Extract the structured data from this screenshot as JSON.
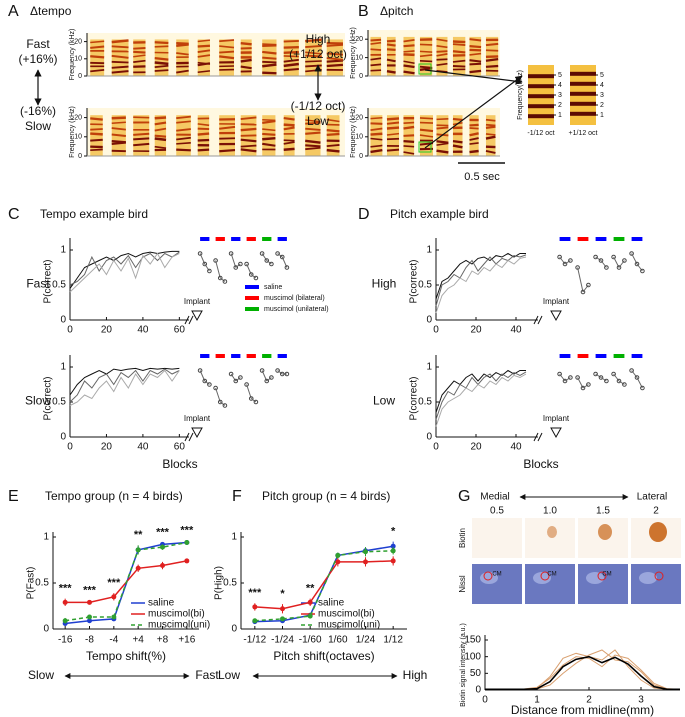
{
  "panels": [
    {
      "label": "A",
      "title": "Δtempo"
    },
    {
      "label": "B",
      "title": "Δpitch"
    },
    {
      "label": "C",
      "title": "Tempo example bird"
    },
    {
      "label": "D",
      "title": "Pitch example bird"
    },
    {
      "label": "E",
      "title": "Tempo group (n = 4 birds)"
    },
    {
      "label": "F",
      "title": "Pitch group (n = 4 birds)"
    },
    {
      "label": "G"
    }
  ],
  "spectrograms": [
    {
      "top": [
        "Fast",
        "(+16%)"
      ],
      "bottom": [
        "(-16%)",
        "Slow"
      ],
      "ylabel": "Frequency (kHz)",
      "ylim": [
        0,
        25
      ],
      "yticks": [
        0,
        10,
        20
      ]
    },
    {
      "top": [
        "High",
        "(+1/12 oct)"
      ],
      "bottom": [
        "(-1/12 oct)",
        "Low"
      ],
      "ylabel": "Frequency (kHz)",
      "ylim": [
        0,
        25
      ],
      "yticks": [
        0,
        10,
        20
      ],
      "inset": {
        "ylabel": "Frequency(kHz)",
        "ylim": [
          0,
          6
        ],
        "yticks": [
          1,
          2,
          3,
          4,
          5
        ],
        "labels": [
          "-1/12 oct",
          "+1/12 oct"
        ]
      },
      "scale_bar": "0.5 sec"
    }
  ],
  "histology": {
    "medial": "Medial",
    "lateral": "Lateral",
    "positions": [
      "0.5",
      "1.0",
      "1.5",
      "2"
    ],
    "rows": [
      "Biotin",
      "Nissl"
    ],
    "region": "CM"
  },
  "chart_data": [
    {
      "type": "line",
      "row_label": "Fast",
      "ylabel": "P(correct)",
      "ylim": [
        0,
        1.1
      ],
      "yticks": [
        0,
        0.5,
        1
      ],
      "xlim": [
        0,
        62
      ],
      "xticks": [
        0,
        20,
        40,
        60
      ],
      "implant": "Implant",
      "x": [
        0,
        4,
        8,
        12,
        16,
        20,
        24,
        28,
        32,
        36,
        40,
        44,
        48,
        52,
        56,
        60
      ],
      "series": [
        {
          "color": "#111111",
          "values": [
            0.45,
            0.6,
            0.75,
            0.8,
            0.85,
            0.9,
            0.85,
            0.92,
            0.95,
            0.9,
            0.95,
            0.97,
            0.95,
            0.97,
            0.98,
            0.98
          ]
        },
        {
          "color": "#666666",
          "values": [
            0.5,
            0.55,
            0.65,
            0.9,
            0.7,
            0.85,
            0.9,
            0.8,
            0.92,
            0.75,
            0.9,
            0.95,
            0.85,
            0.95,
            0.9,
            0.97
          ]
        },
        {
          "color": "#aaaaaa",
          "values": [
            0.4,
            0.5,
            0.6,
            0.7,
            0.8,
            0.65,
            0.85,
            0.7,
            0.88,
            0.6,
            0.92,
            0.8,
            0.95,
            0.75,
            0.9,
            0.95
          ]
        }
      ],
      "post": [
        {
          "color": "#0000ff",
          "values": [
            0.95,
            0.8,
            0.7
          ]
        },
        {
          "color": "#ff0000",
          "values": [
            0.85,
            0.6,
            0.55
          ]
        },
        {
          "color": "#0000ff",
          "values": [
            0.95,
            0.75,
            0.8
          ]
        },
        {
          "color": "#ff0000",
          "values": [
            0.8,
            0.65,
            0.6
          ]
        },
        {
          "color": "#00b000",
          "values": [
            0.95,
            0.85,
            0.8
          ]
        },
        {
          "color": "#0000ff",
          "values": [
            0.95,
            0.9,
            0.75
          ]
        }
      ],
      "legend": [
        {
          "name": "saline",
          "color": "#0000ff"
        },
        {
          "name": "muscimol (bilateral)",
          "color": "#ff0000"
        },
        {
          "name": "muscimol (unilateral)",
          "color": "#00b000"
        }
      ]
    },
    {
      "type": "line",
      "row_label": "Slow",
      "ylabel": "P(correct)",
      "ylim": [
        0,
        1.1
      ],
      "yticks": [
        0,
        0.5,
        1
      ],
      "xlim": [
        0,
        62
      ],
      "xticks": [
        0,
        20,
        40,
        60
      ],
      "implant": "Implant",
      "xlabel": "Blocks",
      "x": [
        0,
        4,
        8,
        12,
        16,
        20,
        24,
        28,
        32,
        36,
        40,
        44,
        48,
        52,
        56,
        60
      ],
      "series": [
        {
          "color": "#111111",
          "values": [
            0.6,
            0.75,
            0.85,
            0.9,
            0.95,
            0.9,
            0.97,
            0.95,
            0.97,
            0.98,
            0.95,
            0.98,
            0.97,
            0.98,
            0.97,
            0.98
          ]
        },
        {
          "color": "#666666",
          "values": [
            0.5,
            0.6,
            0.8,
            0.7,
            0.85,
            0.9,
            0.75,
            0.92,
            0.85,
            0.95,
            0.8,
            0.95,
            0.9,
            0.97,
            0.9,
            0.95
          ]
        },
        {
          "color": "#aaaaaa",
          "values": [
            0.45,
            0.5,
            0.6,
            0.55,
            0.7,
            0.8,
            0.65,
            0.85,
            0.7,
            0.9,
            0.75,
            0.9,
            0.85,
            0.95,
            0.8,
            0.95
          ]
        }
      ],
      "post": [
        {
          "color": "#0000ff",
          "values": [
            0.95,
            0.8,
            0.75
          ]
        },
        {
          "color": "#ff0000",
          "values": [
            0.7,
            0.5,
            0.45
          ]
        },
        {
          "color": "#0000ff",
          "values": [
            0.9,
            0.8,
            0.85
          ]
        },
        {
          "color": "#ff0000",
          "values": [
            0.75,
            0.55,
            0.5
          ]
        },
        {
          "color": "#00b000",
          "values": [
            0.95,
            0.8,
            0.85
          ]
        },
        {
          "color": "#0000ff",
          "values": [
            0.95,
            0.9,
            0.9
          ]
        }
      ]
    },
    {
      "type": "line",
      "row_label": "High",
      "ylabel": "P(correct)",
      "ylim": [
        0,
        1.1
      ],
      "yticks": [
        0,
        0.5,
        1
      ],
      "xlim": [
        0,
        48
      ],
      "xticks": [
        0,
        20,
        40
      ],
      "implant": "Implant",
      "x": [
        0,
        3,
        6,
        9,
        12,
        15,
        18,
        21,
        24,
        27,
        30,
        33,
        36,
        39,
        42,
        45
      ],
      "series": [
        {
          "color": "#111111",
          "values": [
            0.3,
            0.55,
            0.6,
            0.7,
            0.8,
            0.85,
            0.8,
            0.88,
            0.9,
            0.85,
            0.92,
            0.9,
            0.95,
            0.9,
            0.95,
            0.95
          ]
        },
        {
          "color": "#666666",
          "values": [
            0.2,
            0.5,
            0.55,
            0.65,
            0.6,
            0.75,
            0.85,
            0.7,
            0.8,
            0.9,
            0.8,
            0.88,
            0.85,
            0.92,
            0.9,
            0.93
          ]
        },
        {
          "color": "#aaaaaa",
          "values": [
            0.1,
            0.35,
            0.45,
            0.5,
            0.6,
            0.55,
            0.7,
            0.65,
            0.75,
            0.7,
            0.8,
            0.75,
            0.85,
            0.8,
            0.88,
            0.9
          ]
        }
      ],
      "post": [
        {
          "color": "#0000ff",
          "values": [
            0.9,
            0.8,
            0.85
          ]
        },
        {
          "color": "#ff0000",
          "values": [
            0.75,
            0.4,
            0.5
          ]
        },
        {
          "color": "#0000ff",
          "values": [
            0.9,
            0.85,
            0.75
          ]
        },
        {
          "color": "#00b000",
          "values": [
            0.9,
            0.75,
            0.85
          ]
        },
        {
          "color": "#0000ff",
          "values": [
            0.95,
            0.8,
            0.7
          ]
        }
      ]
    },
    {
      "type": "line",
      "row_label": "Low",
      "ylabel": "P(correct)",
      "ylim": [
        0,
        1.1
      ],
      "yticks": [
        0,
        0.5,
        1
      ],
      "xlim": [
        0,
        48
      ],
      "xticks": [
        0,
        20,
        40
      ],
      "implant": "Implant",
      "xlabel": "Blocks",
      "x": [
        0,
        3,
        6,
        9,
        12,
        15,
        18,
        21,
        24,
        27,
        30,
        33,
        36,
        39,
        42,
        45
      ],
      "series": [
        {
          "color": "#111111",
          "values": [
            0.35,
            0.6,
            0.7,
            0.8,
            0.75,
            0.85,
            0.9,
            0.8,
            0.9,
            0.85,
            0.92,
            0.88,
            0.95,
            0.9,
            0.95,
            0.95
          ]
        },
        {
          "color": "#666666",
          "values": [
            0.25,
            0.5,
            0.65,
            0.6,
            0.75,
            0.7,
            0.85,
            0.75,
            0.85,
            0.9,
            0.8,
            0.9,
            0.85,
            0.92,
            0.88,
            0.93
          ]
        },
        {
          "color": "#aaaaaa",
          "values": [
            0.15,
            0.4,
            0.5,
            0.55,
            0.6,
            0.7,
            0.65,
            0.75,
            0.7,
            0.8,
            0.75,
            0.85,
            0.8,
            0.88,
            0.85,
            0.9
          ]
        }
      ],
      "post": [
        {
          "color": "#0000ff",
          "values": [
            0.9,
            0.8,
            0.85
          ]
        },
        {
          "color": "#ff0000",
          "values": [
            0.85,
            0.7,
            0.75
          ]
        },
        {
          "color": "#0000ff",
          "values": [
            0.9,
            0.85,
            0.8
          ]
        },
        {
          "color": "#00b000",
          "values": [
            0.9,
            0.8,
            0.75
          ]
        },
        {
          "color": "#0000ff",
          "values": [
            0.95,
            0.85,
            0.7
          ]
        }
      ]
    },
    {
      "type": "line",
      "ylabel": "P(Fast)",
      "xlabel": "Tempo shift(%)",
      "arrow_left": "Slow",
      "arrow_right": "Fast",
      "ylim": [
        0,
        1
      ],
      "yticks": [
        0,
        0.5,
        1
      ],
      "categories": [
        "-16",
        "-8",
        "-4",
        "+4",
        "+8",
        "+16"
      ],
      "annotations": [
        "***",
        "***",
        "***",
        "**",
        "***",
        "***"
      ],
      "series": [
        {
          "name": "saline",
          "color": "#1f3fd0",
          "values": [
            0.06,
            0.09,
            0.11,
            0.86,
            0.92,
            0.94
          ],
          "errors": [
            0.02,
            0.02,
            0.02,
            0.04,
            0.02,
            0.02
          ]
        },
        {
          "name": "muscimol(bi)",
          "color": "#e02020",
          "values": [
            0.29,
            0.29,
            0.35,
            0.66,
            0.69,
            0.74
          ],
          "errors": [
            0.04,
            0.02,
            0.04,
            0.04,
            0.04,
            0.02
          ]
        },
        {
          "name": "muscimol(uni)",
          "color": "#30a030",
          "dashed": true,
          "values": [
            0.09,
            0.13,
            0.13,
            0.86,
            0.89,
            0.94
          ],
          "errors": [
            0.03,
            0.02,
            0.02,
            0.05,
            0.03,
            0.02
          ]
        }
      ]
    },
    {
      "type": "line",
      "ylabel": "P(High)",
      "xlabel": "Pitch shift(octaves)",
      "arrow_left": "Low",
      "arrow_right": "High",
      "ylim": [
        0,
        1
      ],
      "yticks": [
        0,
        0.5,
        1
      ],
      "categories": [
        "-1/12",
        "-1/24",
        "-1/60",
        "1/60",
        "1/24",
        "1/12"
      ],
      "annotations": [
        "***",
        "*",
        "**",
        null,
        null,
        "*"
      ],
      "series": [
        {
          "name": "saline",
          "color": "#1f3fd0",
          "values": [
            0.08,
            0.09,
            0.15,
            0.8,
            0.85,
            0.9
          ],
          "errors": [
            0.02,
            0.02,
            0.02,
            0.03,
            0.04,
            0.05
          ]
        },
        {
          "name": "muscimol(bi)",
          "color": "#e02020",
          "values": [
            0.24,
            0.22,
            0.29,
            0.73,
            0.73,
            0.74
          ],
          "errors": [
            0.04,
            0.05,
            0.04,
            0.05,
            0.05,
            0.05
          ]
        },
        {
          "name": "muscimol(uni)",
          "color": "#30a030",
          "dashed": true,
          "values": [
            0.09,
            0.11,
            0.14,
            0.8,
            0.84,
            0.85
          ],
          "errors": [
            0.02,
            0.02,
            0.02,
            0.03,
            0.05,
            0.04
          ]
        }
      ]
    },
    {
      "type": "line",
      "ylabel": "Biotin signal intensity (a.u.)",
      "xlabel": "Distance from midline(mm)",
      "xlim": [
        0,
        3.75
      ],
      "xticks": [
        0,
        1,
        2,
        3
      ],
      "ylim": [
        0,
        150
      ],
      "yticks": [
        0,
        50,
        100,
        150
      ],
      "x": [
        0,
        0.25,
        0.5,
        0.75,
        1,
        1.25,
        1.5,
        1.75,
        2,
        2.25,
        2.5,
        2.75,
        3,
        3.25,
        3.5,
        3.75
      ],
      "series": [
        {
          "color": "#d9a070",
          "values": [
            2,
            2,
            2,
            2,
            6,
            40,
            95,
            110,
            100,
            90,
            120,
            70,
            30,
            6,
            2,
            2
          ]
        },
        {
          "color": "#d9a070",
          "values": [
            2,
            2,
            2,
            2,
            3,
            15,
            50,
            80,
            105,
            120,
            90,
            85,
            55,
            15,
            3,
            2
          ]
        },
        {
          "color": "#d9a070",
          "values": [
            2,
            2,
            2,
            3,
            8,
            35,
            75,
            100,
            95,
            70,
            105,
            95,
            60,
            20,
            4,
            2
          ]
        },
        {
          "color": "#000000",
          "values": [
            2,
            2,
            2,
            2,
            4,
            25,
            70,
            92,
            100,
            82,
            98,
            78,
            42,
            10,
            2,
            2
          ]
        }
      ]
    }
  ]
}
